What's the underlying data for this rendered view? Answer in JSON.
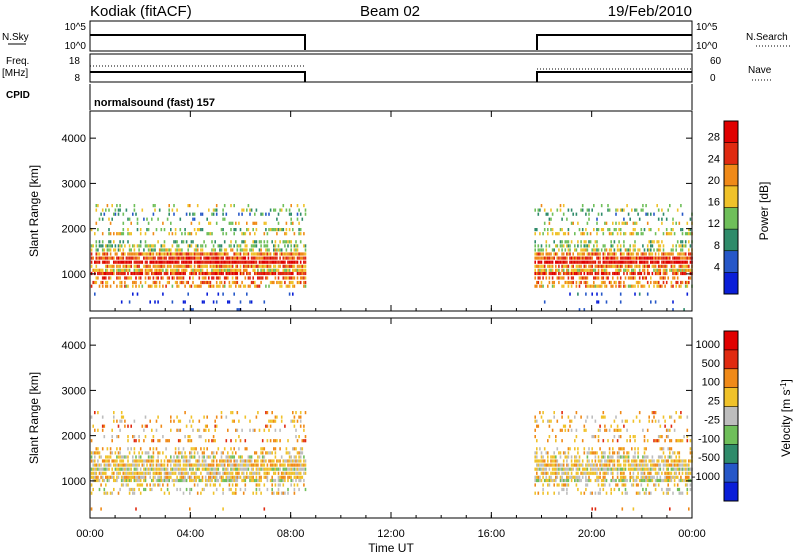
{
  "header": {
    "station": "Kodiak (fitACF)",
    "beam": "Beam 02",
    "date": "19/Feb/2010"
  },
  "params": {
    "nsky_label": "N.Sky",
    "nsky_ticks": [
      "10^5",
      "10^0"
    ],
    "nsearch_label": "N.Search",
    "nsearch_ticks": [
      "10^5",
      "10^0"
    ],
    "freq_label": "Freq.",
    "freq_unit": "[MHz]",
    "freq_ticks": [
      "18",
      "8"
    ],
    "nave_label": "Nave",
    "nave_ticks": [
      "60",
      "0"
    ],
    "cpid_label": "CPID",
    "cpid_text": "normalsound (fast) 157"
  },
  "chart_data": [
    {
      "type": "heatmap",
      "name": "power",
      "ylabel": "Slant Range [km]",
      "yticks": [
        "1000",
        "2000",
        "3000",
        "4000"
      ],
      "ylim": [
        180,
        4600
      ],
      "xlim": [
        0,
        24
      ],
      "colorbar": {
        "label": "Power [dB]",
        "ticks": [
          "4",
          "8",
          "12",
          "16",
          "20",
          "24",
          "28"
        ],
        "range": [
          0,
          32
        ],
        "colors": [
          "#0a1ed8",
          "#2657c8",
          "#2f8b6a",
          "#6fbf5a",
          "#f0c22a",
          "#f08a18",
          "#e02a10",
          "#e00000"
        ]
      },
      "data_windows": [
        [
          0.0,
          8.6
        ],
        [
          17.7,
          24.0
        ]
      ],
      "gates": [
        {
          "range": 200,
          "level": 5,
          "density": 0.04
        },
        {
          "range": 370,
          "level": 2,
          "density": 0.1
        },
        {
          "range": 545,
          "level": 4,
          "density": 0.08
        },
        {
          "range": 720,
          "level": 20,
          "density": 0.45
        },
        {
          "range": 800,
          "level": 22,
          "density": 0.45
        },
        {
          "range": 900,
          "level": 24,
          "density": 0.55
        },
        {
          "range": 1000,
          "level": 27,
          "density": 0.8
        },
        {
          "range": 1070,
          "level": 18,
          "density": 0.75
        },
        {
          "range": 1160,
          "level": 21,
          "density": 0.8
        },
        {
          "range": 1250,
          "level": 29,
          "density": 0.9
        },
        {
          "range": 1340,
          "level": 25,
          "density": 0.9
        },
        {
          "range": 1430,
          "level": 22,
          "density": 0.8
        },
        {
          "range": 1520,
          "level": 16,
          "density": 0.55
        },
        {
          "range": 1610,
          "level": 15,
          "density": 0.5
        },
        {
          "range": 1700,
          "level": 14,
          "density": 0.35
        },
        {
          "range": 1880,
          "level": 17,
          "density": 0.35
        },
        {
          "range": 1970,
          "level": 14,
          "density": 0.3
        },
        {
          "range": 2110,
          "level": 18,
          "density": 0.25
        },
        {
          "range": 2200,
          "level": 12,
          "density": 0.22
        },
        {
          "range": 2310,
          "level": 10,
          "density": 0.25
        },
        {
          "range": 2400,
          "level": 14,
          "density": 0.22
        },
        {
          "range": 2500,
          "level": 17,
          "density": 0.18
        }
      ]
    },
    {
      "type": "heatmap",
      "name": "velocity",
      "ylabel": "Slant Range [km]",
      "yticks": [
        "1000",
        "2000",
        "3000",
        "4000"
      ],
      "ylim": [
        180,
        4600
      ],
      "xlim": [
        0,
        24
      ],
      "xticks": [
        "00:00",
        "04:00",
        "08:00",
        "12:00",
        "16:00",
        "20:00",
        "00:00"
      ],
      "xlabel": "Time UT",
      "colorbar": {
        "label": "Velocity [m s^-1]",
        "ticks": [
          "1000",
          "500",
          "100",
          "25",
          "-25",
          "-100",
          "-500",
          "-1000"
        ],
        "colors": [
          "#0a1ed8",
          "#2657c8",
          "#2f8b6a",
          "#6fbf5a",
          "#bdbdbd",
          "#f0c22a",
          "#f08a18",
          "#e02a10",
          "#e00000"
        ]
      },
      "data_windows": [
        [
          0.0,
          8.6
        ],
        [
          17.7,
          24.0
        ]
      ],
      "gates": [
        {
          "range": 370,
          "level": 6,
          "density": 0.05
        },
        {
          "range": 720,
          "level": 5,
          "density": 0.3
        },
        {
          "range": 800,
          "level": 4,
          "density": 0.3
        },
        {
          "range": 900,
          "level": 5,
          "density": 0.4
        },
        {
          "range": 1000,
          "level": 4,
          "density": 0.75
        },
        {
          "range": 1070,
          "level": 5,
          "density": 0.7
        },
        {
          "range": 1160,
          "level": 5,
          "density": 0.75
        },
        {
          "range": 1250,
          "level": 4,
          "density": 0.9
        },
        {
          "range": 1340,
          "level": 5,
          "density": 0.85
        },
        {
          "range": 1430,
          "level": 5,
          "density": 0.75
        },
        {
          "range": 1520,
          "level": 4,
          "density": 0.55
        },
        {
          "range": 1610,
          "level": 5,
          "density": 0.45
        },
        {
          "range": 1700,
          "level": 5,
          "density": 0.3
        },
        {
          "range": 1880,
          "level": 6,
          "density": 0.3
        },
        {
          "range": 1970,
          "level": 5,
          "density": 0.25
        },
        {
          "range": 2110,
          "level": 5,
          "density": 0.22
        },
        {
          "range": 2200,
          "level": 6,
          "density": 0.2
        },
        {
          "range": 2310,
          "level": 5,
          "density": 0.22
        },
        {
          "range": 2400,
          "level": 5,
          "density": 0.2
        },
        {
          "range": 2500,
          "level": 6,
          "density": 0.15
        }
      ]
    }
  ]
}
